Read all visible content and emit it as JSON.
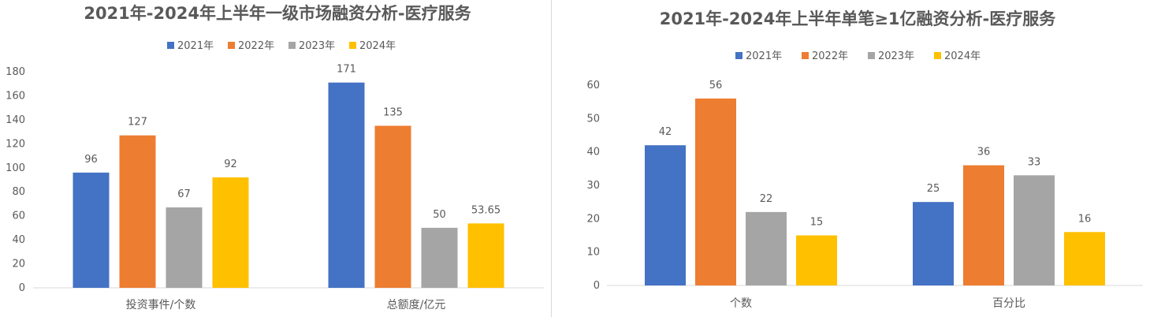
{
  "colors": {
    "2021年": "#4472c4",
    "2022年": "#ed7d31",
    "2023年": "#a5a5a5",
    "2024年": "#ffc000",
    "title": "#595959",
    "axis_text": "#595959",
    "grid": "#d9d9d9"
  },
  "chart_data": [
    {
      "type": "bar",
      "title": "2021年-2024年上半年一级市场融资分析-医疗服务",
      "categories": [
        "投资事件/个数",
        "总额度/亿元"
      ],
      "series": [
        {
          "name": "2021年",
          "values": [
            96,
            171
          ],
          "labels": [
            "96",
            "171"
          ]
        },
        {
          "name": "2022年",
          "values": [
            127,
            135
          ],
          "labels": [
            "127",
            "135"
          ]
        },
        {
          "name": "2023年",
          "values": [
            67,
            50
          ],
          "labels": [
            "67",
            "50"
          ]
        },
        {
          "name": "2024年",
          "values": [
            92,
            53.65
          ],
          "labels": [
            "92",
            "53.65"
          ]
        }
      ],
      "ylim": [
        0,
        180
      ],
      "yticks": [
        "0",
        "20",
        "40",
        "60",
        "80",
        "100",
        "120",
        "140",
        "160",
        "180"
      ],
      "legend": "top",
      "grid": false
    },
    {
      "type": "bar",
      "title": "2021年-2024年上半年单笔≥1亿融资分析-医疗服务",
      "categories": [
        "个数",
        "百分比"
      ],
      "series": [
        {
          "name": "2021年",
          "values": [
            42,
            25
          ],
          "labels": [
            "42",
            "25"
          ]
        },
        {
          "name": "2022年",
          "values": [
            56,
            36
          ],
          "labels": [
            "56",
            "36"
          ]
        },
        {
          "name": "2023年",
          "values": [
            22,
            33
          ],
          "labels": [
            "22",
            "33"
          ]
        },
        {
          "name": "2024年",
          "values": [
            15,
            16
          ],
          "labels": [
            "15",
            "16"
          ]
        }
      ],
      "ylim": [
        0,
        60
      ],
      "yticks": [
        "0",
        "10",
        "20",
        "30",
        "40",
        "50",
        "60"
      ],
      "legend": "top",
      "grid": false
    }
  ]
}
